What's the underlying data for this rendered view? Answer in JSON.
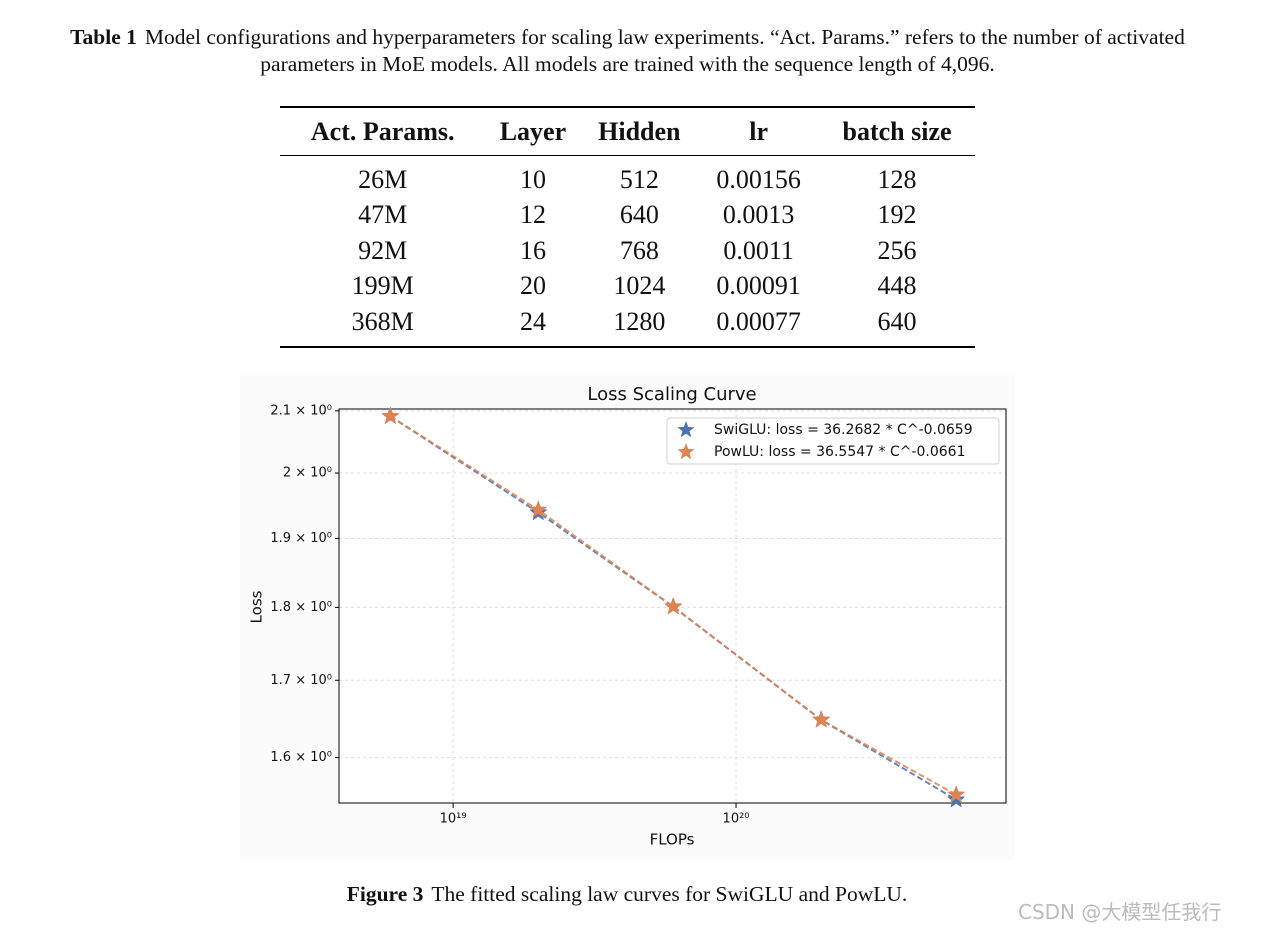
{
  "table_caption": {
    "label": "Table 1",
    "text": "Model configurations and hyperparameters for scaling law experiments. “Act. Params.” refers to the number of activated parameters in MoE models. All models are trained with the sequence length of 4,096."
  },
  "table": {
    "header": [
      "Act. Params.",
      "Layer",
      "Hidden",
      "lr",
      "batch size"
    ],
    "rows": [
      [
        "26M",
        "10",
        "512",
        "0.00156",
        "128"
      ],
      [
        "47M",
        "12",
        "640",
        "0.0013",
        "192"
      ],
      [
        "92M",
        "16",
        "768",
        "0.0011",
        "256"
      ],
      [
        "199M",
        "20",
        "1024",
        "0.00091",
        "448"
      ],
      [
        "368M",
        "24",
        "1280",
        "0.00077",
        "640"
      ]
    ]
  },
  "chart_data": {
    "type": "scatter",
    "title": "Loss Scaling Curve",
    "xlabel": "FLOPs",
    "ylabel": "Loss",
    "xscale": "log",
    "yscale": "log",
    "x": [
      6e+18,
      2e+19,
      6e+19,
      2e+20,
      6e+20
    ],
    "series": [
      {
        "name": "SwiGLU: loss = 36.2682 * C^-0.0659",
        "color": "#4c72b0",
        "values": [
          2.091,
          1.939,
          1.801,
          1.648,
          1.548
        ]
      },
      {
        "name": "PowLU: loss = 36.5547 * C^-0.0661",
        "color": "#dd8452",
        "values": [
          2.091,
          1.943,
          1.801,
          1.648,
          1.554
        ]
      }
    ],
    "xlim": [
      3.95e+18,
      9e+20
    ],
    "xticks": [
      {
        "value": 1e+19,
        "label": "10¹⁹"
      },
      {
        "value": 1e+20,
        "label": "10²⁰"
      }
    ],
    "ylim": [
      1.544,
      2.103
    ],
    "yticks": [
      {
        "value": 1.6,
        "label": "1.6 × 10⁰"
      },
      {
        "value": 1.7,
        "label": "1.7 × 10⁰"
      },
      {
        "value": 1.8,
        "label": "1.8 × 10⁰"
      },
      {
        "value": 1.9,
        "label": "1.9 × 10⁰"
      },
      {
        "value": 2.0,
        "label": "2 × 10⁰"
      },
      {
        "value": 2.1,
        "label": "2.1 × 10⁰"
      }
    ],
    "grid": true,
    "legend": "upper right",
    "line_style": "dashed"
  },
  "figure_caption": {
    "label": "Figure 3",
    "text": "The fitted scaling law curves for SwiGLU and PowLU."
  },
  "watermark": "CSDN @大模型任我行"
}
